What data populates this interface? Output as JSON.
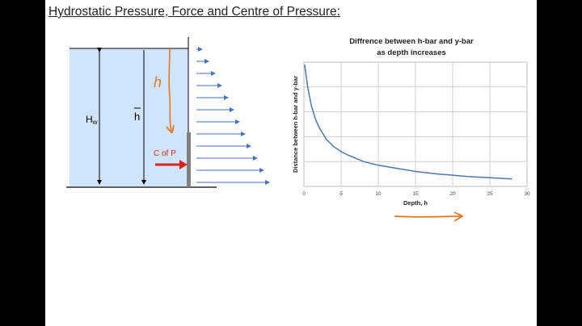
{
  "slide": {
    "title": "Hydrostatic Pressure, Force and Centre of Pressure:",
    "colors": {
      "water": "#cfe6fa",
      "arrow": "#4472c4",
      "force": "#e02020",
      "ink": "#e87722",
      "curve": "#4a78b0",
      "wall": "#808080"
    }
  },
  "diagram": {
    "label_hw": "H",
    "label_hw_sub": "w",
    "label_hbar": "h",
    "label_cop": "C of P",
    "ink_letter": "h",
    "icons": [
      "pressure-arrow-icon",
      "force-arrow-icon",
      "dimension-arrow-icon"
    ]
  },
  "chart_data": {
    "type": "line",
    "title": "Diffrence between h-bar and y-bar",
    "subtitle": "as depth increases",
    "xlabel": "Depth, h",
    "ylabel": "Distance between h-bar and y-bar",
    "xlim": [
      0,
      30
    ],
    "x_ticks": [
      "0",
      "5",
      "10",
      "15",
      "20",
      "25",
      "30"
    ],
    "ylim": [
      0,
      1
    ],
    "grid": true,
    "series": [
      {
        "x": [
          0.1,
          0.5,
          1,
          1.5,
          2,
          3,
          4,
          5,
          6,
          8,
          10,
          12,
          15,
          18,
          20,
          22,
          25,
          28
        ],
        "values": [
          0.98,
          0.8,
          0.65,
          0.55,
          0.48,
          0.38,
          0.32,
          0.28,
          0.25,
          0.2,
          0.17,
          0.15,
          0.12,
          0.1,
          0.09,
          0.08,
          0.07,
          0.06
        ]
      }
    ]
  }
}
